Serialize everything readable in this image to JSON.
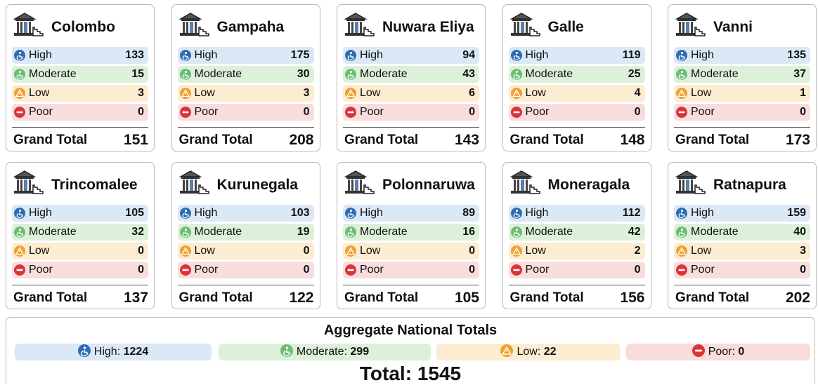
{
  "levels": [
    "High",
    "Moderate",
    "Low",
    "Poor"
  ],
  "grand_total_label": "Grand Total",
  "cards": [
    {
      "name": "Colombo",
      "values": [
        133,
        15,
        3,
        0
      ],
      "grand_total": 151
    },
    {
      "name": "Gampaha",
      "values": [
        175,
        30,
        3,
        0
      ],
      "grand_total": 208
    },
    {
      "name": "Nuwara Eliya",
      "values": [
        94,
        43,
        6,
        0
      ],
      "grand_total": 143
    },
    {
      "name": "Galle",
      "values": [
        119,
        25,
        4,
        0
      ],
      "grand_total": 148
    },
    {
      "name": "Vanni",
      "values": [
        135,
        37,
        1,
        0
      ],
      "grand_total": 173
    },
    {
      "name": "Trincomalee",
      "values": [
        105,
        32,
        0,
        0
      ],
      "grand_total": 137
    },
    {
      "name": "Kurunegala",
      "values": [
        103,
        19,
        0,
        0
      ],
      "grand_total": 122
    },
    {
      "name": "Polonnaruwa",
      "values": [
        89,
        16,
        0,
        0
      ],
      "grand_total": 105
    },
    {
      "name": "Moneragala",
      "values": [
        112,
        42,
        2,
        0
      ],
      "grand_total": 156
    },
    {
      "name": "Ratnapura",
      "values": [
        159,
        40,
        3,
        0
      ],
      "grand_total": 202
    }
  ],
  "aggregate": {
    "title": "Aggregate National Totals",
    "items": [
      {
        "label": "High:",
        "value": 1224
      },
      {
        "label": "Moderate:",
        "value": 299
      },
      {
        "label": "Low:",
        "value": 22
      },
      {
        "label": "Poor:",
        "value": 0
      }
    ],
    "total_label": "Total:",
    "total": 1545
  }
}
